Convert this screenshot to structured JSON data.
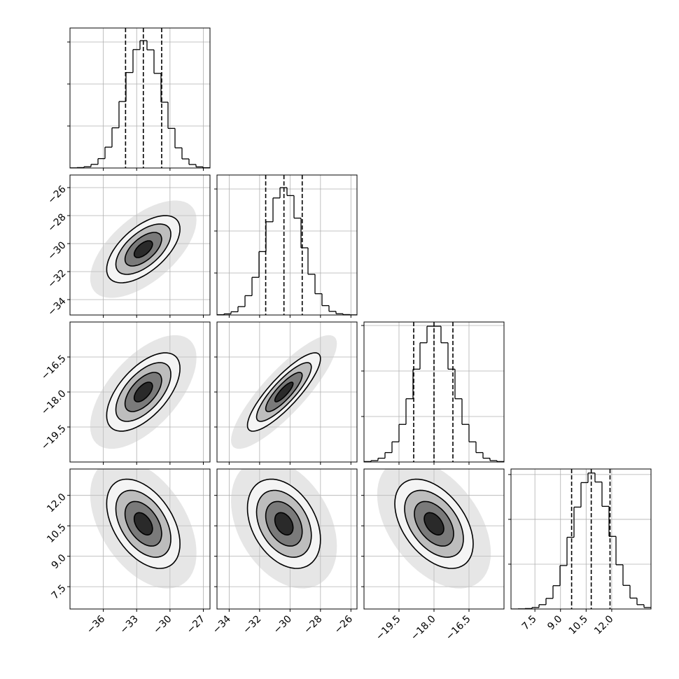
{
  "chart_data": {
    "type": "corner",
    "grid": true,
    "levels": [
      0.5,
      1,
      1.5,
      2
    ],
    "variables": [
      {
        "xlim": [
          -39,
          -26.4
        ],
        "xticks": [
          {
            "value": -36,
            "label": "−36"
          },
          {
            "value": -33,
            "label": "−33"
          },
          {
            "value": -30,
            "label": "−30"
          },
          {
            "value": -27,
            "label": "−27"
          }
        ],
        "quantiles": [
          -34,
          -32.4,
          -30.75
        ],
        "hist": {
          "bins": [
            -39,
            -38.37,
            -37.74,
            -37.11,
            -36.48,
            -35.85,
            -35.22,
            -34.59,
            -33.96,
            -33.33,
            -32.7,
            -32.07,
            -31.44,
            -30.81,
            -30.18,
            -29.55,
            -28.92,
            -28.29,
            -27.66,
            -27.03,
            -26.4
          ],
          "counts": [
            1,
            3,
            9,
            26,
            67,
            149,
            287,
            475,
            682,
            846,
            910,
            844,
            676,
            470,
            283,
            144,
            65,
            25,
            8,
            2
          ],
          "ylim": [
            0,
            1000
          ],
          "yticks": [
            300,
            600,
            900
          ]
        }
      },
      {
        "xlim": [
          -34.8,
          -25.6
        ],
        "ylim": [
          -35.1,
          -25.1
        ],
        "xticks": [
          {
            "value": -34,
            "label": "−34"
          },
          {
            "value": -32,
            "label": "−32"
          },
          {
            "value": -30,
            "label": "−30"
          },
          {
            "value": -28,
            "label": "−28"
          },
          {
            "value": -26,
            "label": "−26"
          }
        ],
        "yticks": [
          {
            "value": -26,
            "label": "−26"
          },
          {
            "value": -28,
            "label": "−28"
          },
          {
            "value": -30,
            "label": "−30"
          },
          {
            "value": -32,
            "label": "−32"
          },
          {
            "value": -34,
            "label": "−34"
          }
        ],
        "quantiles": [
          -31.6,
          -30.4,
          -29.2
        ],
        "hist": {
          "bins": [
            -34.8,
            -34.34,
            -33.88,
            -33.42,
            -32.96,
            -32.5,
            -32.04,
            -31.58,
            -31.12,
            -30.66,
            -30.2,
            -29.74,
            -29.28,
            -28.82,
            -28.36,
            -27.9,
            -27.44,
            -26.98,
            -26.52,
            -26.06,
            -25.6
          ],
          "counts": [
            2,
            8,
            23,
            60,
            138,
            269,
            453,
            666,
            836,
            910,
            853,
            692,
            480,
            291,
            152,
            67,
            26,
            9,
            3,
            1
          ],
          "ylim": [
            0,
            1000
          ],
          "yticks": [
            300,
            600,
            900
          ]
        }
      },
      {
        "xlim": [
          -21,
          -15
        ],
        "ylim": [
          -21,
          -15
        ],
        "xticks": [
          {
            "value": -19.5,
            "label": "−19.5"
          },
          {
            "value": -18,
            "label": "−18.0"
          },
          {
            "value": -16.5,
            "label": "−16.5"
          }
        ],
        "yticks": [
          {
            "value": -16.5,
            "label": "−16.5"
          },
          {
            "value": -18,
            "label": "−18.0"
          },
          {
            "value": -19.5,
            "label": "−19.5"
          }
        ],
        "quantiles": [
          -18.87,
          -18,
          -17.19
        ],
        "hist": {
          "bins": [
            -21,
            -20.7,
            -20.4,
            -20.1,
            -19.8,
            -19.5,
            -19.2,
            -18.9,
            -18.6,
            -18.3,
            -18,
            -17.7,
            -17.4,
            -17.1,
            -16.8,
            -16.5,
            -16.2,
            -15.9,
            -15.6,
            -15.3,
            -15
          ],
          "counts": [
            3,
            9,
            25,
            62,
            133,
            248,
            417,
            612,
            786,
            895,
            895,
            786,
            612,
            417,
            248,
            133,
            62,
            25,
            9,
            3
          ],
          "ylim": [
            0,
            923
          ],
          "yticks": [
            300,
            600,
            900
          ]
        }
      },
      {
        "xlim": [
          6.1,
          14.3
        ],
        "ylim": [
          6.4,
          13.3
        ],
        "xticks": [
          7.5,
          {
            "value": 9,
            "label": "9.0"
          },
          10.5,
          {
            "value": 12,
            "label": "12.0"
          }
        ],
        "yticks": [
          {
            "value": 12,
            "label": "12.0"
          },
          10.5,
          {
            "value": 9,
            "label": "9.0"
          },
          7.5
        ],
        "quantiles": [
          9.65,
          10.8,
          11.9
        ],
        "hist": {
          "bins": [
            6.1,
            6.51,
            6.92,
            7.33,
            7.74,
            8.15,
            8.56,
            8.97,
            9.38,
            9.79,
            10.2,
            10.61,
            11.02,
            11.43,
            11.84,
            12.25,
            12.66,
            13.07,
            13.48,
            13.89,
            14.3
          ],
          "counts": [
            0,
            1,
            3,
            10,
            29,
            71,
            156,
            291,
            480,
            682,
            846,
            910,
            850,
            687,
            486,
            296,
            158,
            73,
            29,
            10
          ],
          "ylim": [
            0,
            937
          ],
          "yticks": [
            300,
            600,
            900
          ]
        }
      }
    ],
    "pairs": [
      [
        {
          "mean": [
            -32.4,
            -30.4
          ],
          "sd": [
            1.65,
            1.2
          ],
          "corr": 0.6
        }
      ],
      [
        {
          "mean": [
            -32.4,
            -18
          ],
          "sd": [
            1.65,
            0.84
          ],
          "corr": 0.6
        },
        {
          "mean": [
            -30.4,
            -18
          ],
          "sd": [
            1.2,
            0.84
          ],
          "corr": 0.85
        }
      ],
      [
        {
          "mean": [
            -32.4,
            10.6
          ],
          "sd": [
            1.65,
            1.1
          ],
          "corr": -0.45
        },
        {
          "mean": [
            -30.4,
            10.6
          ],
          "sd": [
            1.2,
            1.1
          ],
          "corr": -0.35
        },
        {
          "mean": [
            -18,
            10.6
          ],
          "sd": [
            0.84,
            1.1
          ],
          "corr": -0.45
        }
      ]
    ]
  }
}
